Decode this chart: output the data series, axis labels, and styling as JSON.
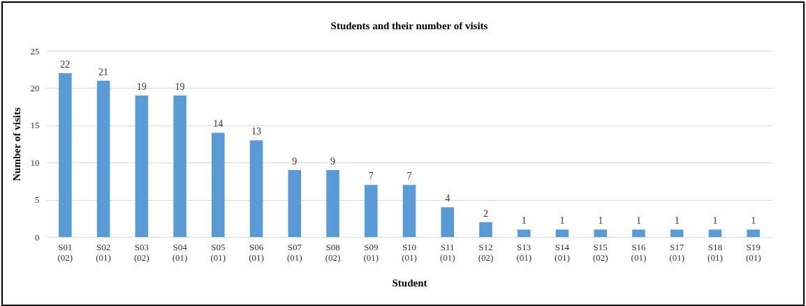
{
  "chart_data": {
    "type": "bar",
    "title": "Students and their number of visits",
    "xlabel": "Student",
    "ylabel": "Number of visits",
    "categories": [
      "S01 (02)",
      "S02 (01)",
      "S03 (02)",
      "S04 (01)",
      "S05 (01)",
      "S06 (01)",
      "S07 (01)",
      "S08 (02)",
      "S09 (01)",
      "S10 (01)",
      "S11 (01)",
      "S12 (02)",
      "S13 (01)",
      "S14 (01)",
      "S15 (02)",
      "S16 (01)",
      "S17 (01)",
      "S18 (01)",
      "S19 (01)"
    ],
    "values": [
      22,
      21,
      19,
      19,
      14,
      13,
      9,
      9,
      7,
      7,
      4,
      2,
      1,
      1,
      1,
      1,
      1,
      1,
      1
    ],
    "color": "#5b9bd5",
    "ylim": [
      0,
      25
    ],
    "yticks": [
      0,
      5,
      10,
      15,
      20,
      25
    ],
    "grid": "y",
    "data_labels": true
  }
}
